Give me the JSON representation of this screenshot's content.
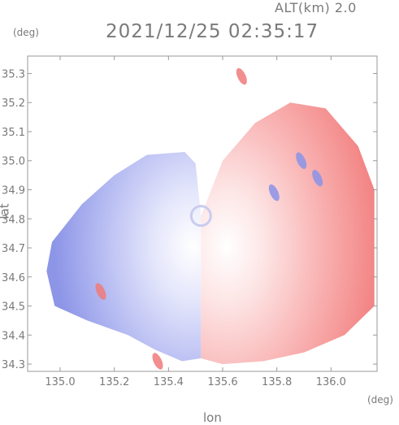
{
  "header": {
    "altitude": "ALT(km) 2.0",
    "timestamp": "2021/12/25 02:35:17",
    "y_unit": "(deg)",
    "x_unit": "(deg)"
  },
  "colors": {
    "approaching": "#8a93e6",
    "receding": "#f07a7a",
    "frame": "#9a9a9a"
  },
  "chart_data": {
    "type": "heatmap",
    "title": "",
    "xlabel": "lon",
    "ylabel": "lat",
    "xlim": [
      134.88,
      136.17
    ],
    "ylim": [
      34.275,
      35.36
    ],
    "xticks": [
      135.0,
      135.2,
      135.4,
      135.6,
      135.8,
      136.0
    ],
    "xtick_labels": [
      "135.0",
      "135.2",
      "135.4",
      "135.6",
      "135.8",
      "136.0"
    ],
    "yticks": [
      34.3,
      34.4,
      34.5,
      34.6,
      34.7,
      34.8,
      34.9,
      35.0,
      35.1,
      35.2,
      35.3
    ],
    "ytick_labels": [
      "34.3",
      "34.4",
      "34.5",
      "34.6",
      "34.7",
      "34.8",
      "34.9",
      "35.0",
      "35.1",
      "35.2",
      "35.3"
    ],
    "grid": false,
    "radar_center": {
      "lon": 135.52,
      "lat": 34.81
    },
    "fields": [
      {
        "name": "receding",
        "lon": [
          135.52,
          135.6,
          135.72,
          135.85,
          135.98,
          136.1,
          136.16,
          136.16,
          136.05,
          135.9,
          135.75,
          135.6,
          135.52
        ],
        "lat": [
          34.81,
          35.0,
          35.13,
          35.2,
          35.18,
          35.05,
          34.9,
          34.5,
          34.4,
          34.34,
          34.31,
          34.3,
          34.32
        ]
      },
      {
        "name": "approaching",
        "lon": [
          135.52,
          135.5,
          135.46,
          135.32,
          135.2,
          135.08,
          134.97,
          134.95,
          134.98,
          135.1,
          135.25,
          135.35,
          135.45,
          135.52
        ],
        "lat": [
          34.81,
          34.99,
          35.03,
          35.02,
          34.95,
          34.85,
          34.72,
          34.62,
          34.5,
          34.45,
          34.4,
          34.35,
          34.31,
          34.32
        ]
      }
    ],
    "strong_echoes": [
      {
        "type": "approaching",
        "lon": 135.89,
        "lat": 35.0
      },
      {
        "type": "approaching",
        "lon": 135.95,
        "lat": 34.94
      },
      {
        "type": "approaching",
        "lon": 135.79,
        "lat": 34.89
      },
      {
        "type": "receding",
        "lon": 135.15,
        "lat": 34.55
      },
      {
        "type": "receding",
        "lon": 135.36,
        "lat": 34.31
      },
      {
        "type": "receding",
        "lon": 135.67,
        "lat": 35.29
      }
    ]
  }
}
